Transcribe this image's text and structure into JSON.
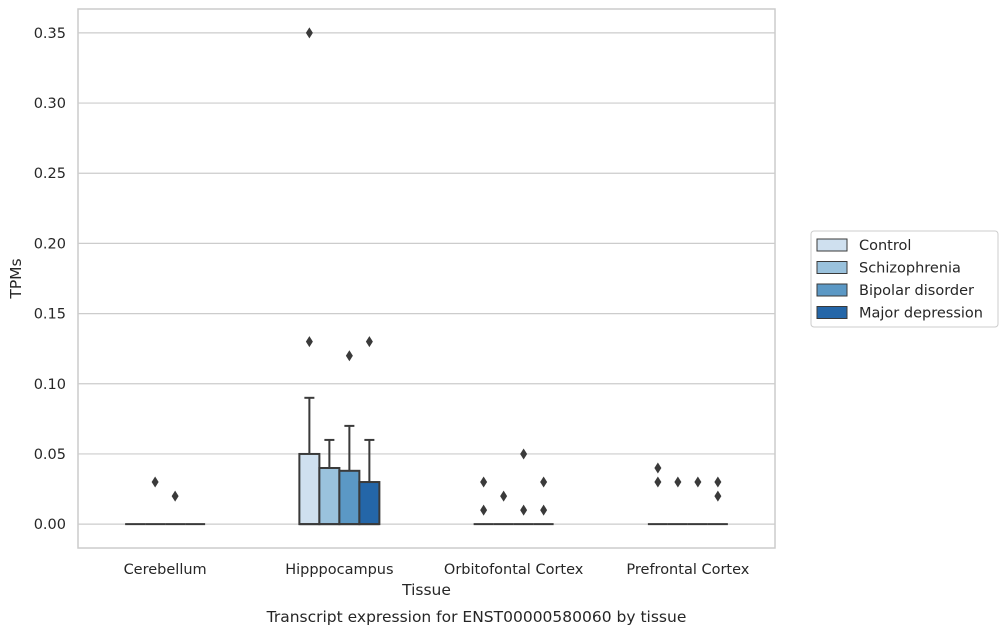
{
  "chart_data": {
    "type": "box",
    "xlabel": "Tissue",
    "ylabel": "TPMs",
    "caption": "Transcript expression for ENST00000580060 by tissue",
    "categories": [
      "Cerebellum",
      "Hipppocampus",
      "Orbitofontal Cortex",
      "Prefrontal Cortex"
    ],
    "ylim": [
      -0.017,
      0.367
    ],
    "yticks": [
      "0.00",
      "0.05",
      "0.10",
      "0.15",
      "0.20",
      "0.25",
      "0.30",
      "0.35"
    ],
    "grid": true,
    "legend_position": "right",
    "series": [
      {
        "name": "Control",
        "color": "#cfe0ef",
        "boxes": [
          {
            "category": "Cerebellum",
            "q1": 0,
            "median": 0,
            "q3": 0,
            "whisker_low": 0,
            "whisker_high": 0,
            "outliers": []
          },
          {
            "category": "Hipppocampus",
            "q1": 0,
            "median": 0,
            "q3": 0.05,
            "whisker_low": 0,
            "whisker_high": 0.09,
            "outliers": [
              0.13,
              0.35
            ]
          },
          {
            "category": "Orbitofontal Cortex",
            "q1": 0,
            "median": 0,
            "q3": 0,
            "whisker_low": 0,
            "whisker_high": 0,
            "outliers": [
              0.01,
              0.03
            ]
          },
          {
            "category": "Prefrontal Cortex",
            "q1": 0,
            "median": 0,
            "q3": 0,
            "whisker_low": 0,
            "whisker_high": 0,
            "outliers": [
              0.03,
              0.04
            ]
          }
        ]
      },
      {
        "name": "Schizophrenia",
        "color": "#9ac2dd",
        "boxes": [
          {
            "category": "Cerebellum",
            "q1": 0,
            "median": 0,
            "q3": 0,
            "whisker_low": 0,
            "whisker_high": 0,
            "outliers": [
              0.03
            ]
          },
          {
            "category": "Hipppocampus",
            "q1": 0,
            "median": 0,
            "q3": 0.04,
            "whisker_low": 0,
            "whisker_high": 0.06,
            "outliers": []
          },
          {
            "category": "Orbitofontal Cortex",
            "q1": 0,
            "median": 0,
            "q3": 0,
            "whisker_low": 0,
            "whisker_high": 0,
            "outliers": [
              0.02
            ]
          },
          {
            "category": "Prefrontal Cortex",
            "q1": 0,
            "median": 0,
            "q3": 0,
            "whisker_low": 0,
            "whisker_high": 0,
            "outliers": [
              0.03
            ]
          }
        ]
      },
      {
        "name": "Bipolar disorder",
        "color": "#5b98c5",
        "boxes": [
          {
            "category": "Cerebellum",
            "q1": 0,
            "median": 0,
            "q3": 0,
            "whisker_low": 0,
            "whisker_high": 0,
            "outliers": [
              0.02
            ]
          },
          {
            "category": "Hipppocampus",
            "q1": 0,
            "median": 0,
            "q3": 0.038,
            "whisker_low": 0,
            "whisker_high": 0.07,
            "outliers": [
              0.12
            ]
          },
          {
            "category": "Orbitofontal Cortex",
            "q1": 0,
            "median": 0,
            "q3": 0,
            "whisker_low": 0,
            "whisker_high": 0,
            "outliers": [
              0.01,
              0.05
            ]
          },
          {
            "category": "Prefrontal Cortex",
            "q1": 0,
            "median": 0,
            "q3": 0,
            "whisker_low": 0,
            "whisker_high": 0,
            "outliers": [
              0.03
            ]
          }
        ]
      },
      {
        "name": "Major depression",
        "color": "#2466a8",
        "boxes": [
          {
            "category": "Cerebellum",
            "q1": 0,
            "median": 0,
            "q3": 0,
            "whisker_low": 0,
            "whisker_high": 0,
            "outliers": []
          },
          {
            "category": "Hipppocampus",
            "q1": 0,
            "median": 0,
            "q3": 0.03,
            "whisker_low": 0,
            "whisker_high": 0.06,
            "outliers": [
              0.13
            ]
          },
          {
            "category": "Orbitofontal Cortex",
            "q1": 0,
            "median": 0,
            "q3": 0,
            "whisker_low": 0,
            "whisker_high": 0,
            "outliers": [
              0.01,
              0.03
            ]
          },
          {
            "category": "Prefrontal Cortex",
            "q1": 0,
            "median": 0,
            "q3": 0,
            "whisker_low": 0,
            "whisker_high": 0,
            "outliers": [
              0.02,
              0.03
            ]
          }
        ]
      }
    ]
  }
}
